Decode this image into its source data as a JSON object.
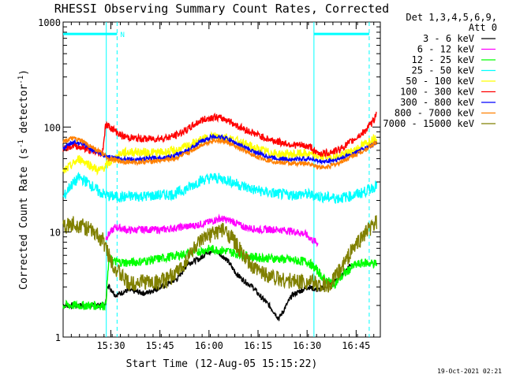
{
  "chart_data": {
    "type": "line",
    "title": "RHESSI Observing Summary Count Rates, Corrected",
    "xlabel": "Start Time (12-Aug-05 15:15:22)",
    "ylabel_main": "Corrected Count Rate (s",
    "ylabel_sup1": "-1",
    "ylabel_mid": " detector",
    "ylabel_sup2": "-1",
    "ylabel_end": ")",
    "yscale": "log",
    "ylim": [
      1,
      1000
    ],
    "xlim_minutes": [
      0,
      97
    ],
    "x_ticks": [
      {
        "label": "15:30",
        "min": 14.6
      },
      {
        "label": "15:45",
        "min": 29.6
      },
      {
        "label": "16:00",
        "min": 44.6
      },
      {
        "label": "16:15",
        "min": 59.6
      },
      {
        "label": "16:30",
        "min": 74.6
      },
      {
        "label": "16:45",
        "min": 89.6
      }
    ],
    "y_ticks": [
      {
        "label": "1",
        "v": 1
      },
      {
        "label": "10",
        "v": 10
      },
      {
        "label": "100",
        "v": 100
      },
      {
        "label": "1000",
        "v": 1000
      }
    ],
    "legend": {
      "header1": "Det 1,3,4,5,6,9,",
      "header2": "Att 0",
      "position": "top-right"
    },
    "annotations": {
      "night_label": "N",
      "timestamp": "19-Oct-2021 02:21"
    },
    "segments": {
      "night_bar_level": 770,
      "night_bars": [
        [
          0,
          16.5
        ],
        [
          76.7,
          93.6
        ]
      ],
      "dashed_lines": [
        16.5,
        93.6
      ],
      "solid_lines": [
        13.2,
        76.7
      ],
      "night_label_min": 17.5
    },
    "series": [
      {
        "name": "3 - 6 keV",
        "color": "#000000",
        "x": [
          0,
          13,
          13.5,
          16,
          20,
          25,
          30,
          35,
          38,
          42,
          44,
          47,
          50,
          53,
          55,
          58,
          60,
          63,
          66,
          70,
          75,
          78,
          82,
          85,
          88
        ],
        "y": [
          2,
          2,
          3.2,
          2.5,
          2.8,
          2.6,
          3.0,
          3.6,
          5.0,
          5.6,
          6.5,
          6.5,
          5.5,
          4.0,
          3.5,
          3.0,
          2.5,
          2.0,
          1.5,
          2.5,
          3.0,
          2.8,
          3.2,
          3.8,
          5.0
        ]
      },
      {
        "name": "6 - 12 keV",
        "color": "#ff00ff",
        "x": [
          13,
          16,
          20,
          25,
          30,
          35,
          40,
          45,
          48,
          52,
          55,
          60,
          65,
          70,
          74,
          76,
          78
        ],
        "y": [
          8.8,
          11.2,
          10.4,
          10.6,
          10.5,
          11.0,
          11.5,
          12.5,
          13.5,
          12.6,
          11.2,
          10.5,
          10.6,
          10.2,
          9.6,
          8.5,
          7.8
        ]
      },
      {
        "name": "12 - 25 keV",
        "color": "#00ff00",
        "x": [
          0,
          13,
          14,
          16,
          20,
          25,
          30,
          35,
          40,
          45,
          50,
          55,
          60,
          65,
          70,
          75,
          78,
          80,
          83,
          86,
          89,
          92,
          96
        ],
        "y": [
          2.0,
          2.0,
          5.5,
          5.2,
          5.1,
          5.3,
          5.6,
          6.0,
          6.4,
          6.9,
          6.6,
          6.0,
          5.7,
          5.6,
          5.4,
          5.2,
          4.2,
          3.5,
          3.2,
          4.0,
          4.8,
          5.1,
          5.0
        ]
      },
      {
        "name": "25 - 50 keV",
        "color": "#00ffff",
        "x": [
          0,
          2,
          5,
          8,
          11,
          14,
          18,
          22,
          26,
          30,
          34,
          38,
          42,
          46,
          50,
          54,
          58,
          62,
          66,
          70,
          74,
          76,
          80,
          84,
          88,
          92,
          96
        ],
        "y": [
          21,
          27,
          33,
          29,
          24,
          22,
          21.5,
          22,
          22,
          22.5,
          23,
          26,
          31,
          33,
          31.5,
          28,
          25.5,
          24,
          23,
          22.5,
          23,
          22.5,
          21.5,
          21,
          22,
          24,
          28
        ]
      },
      {
        "name": "50 - 100 keV",
        "color": "#ffff00",
        "x": [
          0,
          2,
          5,
          8,
          11,
          14,
          18,
          22,
          26,
          30,
          34,
          38,
          42,
          46,
          50,
          54,
          58,
          62,
          66,
          70,
          74,
          76,
          80,
          84,
          88,
          92,
          96
        ],
        "y": [
          37,
          42,
          50,
          44,
          38,
          45,
          57,
          58,
          57,
          57,
          59,
          65,
          75,
          82,
          80,
          72,
          64,
          58,
          55,
          55,
          56,
          54,
          52,
          52,
          58,
          68,
          82
        ]
      },
      {
        "name": "100 - 300 keV",
        "color": "#ff0000",
        "x": [
          0,
          3,
          6,
          9,
          12,
          13,
          14,
          18,
          22,
          26,
          30,
          34,
          38,
          42,
          46,
          50,
          54,
          58,
          62,
          66,
          70,
          74,
          76,
          77,
          80,
          84,
          88,
          92,
          95,
          96
        ],
        "y": [
          62,
          67,
          64,
          58,
          56,
          105,
          102,
          82,
          78,
          77,
          78,
          82,
          95,
          115,
          125,
          118,
          100,
          88,
          78,
          72,
          68,
          66,
          64,
          57,
          56,
          60,
          72,
          90,
          115,
          150
        ]
      },
      {
        "name": "300 - 800 keV",
        "color": "#0000ff",
        "x": [
          0,
          3,
          6,
          9,
          12,
          14,
          18,
          22,
          26,
          30,
          34,
          38,
          42,
          46,
          50,
          54,
          58,
          62,
          66,
          70,
          74,
          76,
          78,
          80,
          84,
          88,
          92,
          96
        ],
        "y": [
          62,
          72,
          70,
          60,
          54,
          52,
          50,
          49,
          50,
          51,
          53,
          60,
          72,
          82,
          78,
          67,
          59,
          53,
          50,
          49,
          50,
          50,
          47,
          47,
          49,
          55,
          62,
          72
        ]
      },
      {
        "name": "800 - 7000 keV",
        "color": "#ff8000",
        "x": [
          0,
          3,
          6,
          9,
          12,
          14,
          18,
          22,
          26,
          30,
          34,
          38,
          42,
          46,
          50,
          54,
          58,
          62,
          66,
          70,
          74,
          76,
          78,
          80,
          84,
          88,
          92,
          96
        ],
        "y": [
          73,
          78,
          73,
          64,
          56,
          50,
          47,
          46,
          47,
          48,
          50,
          56,
          67,
          75,
          72,
          62,
          54,
          49,
          46,
          45,
          45,
          44,
          42,
          41,
          45,
          52,
          60,
          72
        ]
      },
      {
        "name": "7000 - 15000 keV",
        "color": "#808000",
        "x": [
          0,
          3,
          6,
          9,
          12,
          14,
          16,
          20,
          24,
          28,
          32,
          36,
          40,
          44,
          48,
          50,
          52,
          55,
          58,
          62,
          66,
          70,
          74,
          78,
          81,
          84,
          88,
          92,
          96
        ],
        "y": [
          11,
          12,
          11.5,
          10,
          8.5,
          6.0,
          4.5,
          3.2,
          3.4,
          3.3,
          3.5,
          4.5,
          7.0,
          9.0,
          10.5,
          10.0,
          8.5,
          6.0,
          4.5,
          4.0,
          3.6,
          3.4,
          3.4,
          3.2,
          3.0,
          4.0,
          6.5,
          9.5,
          12.5
        ]
      }
    ]
  }
}
